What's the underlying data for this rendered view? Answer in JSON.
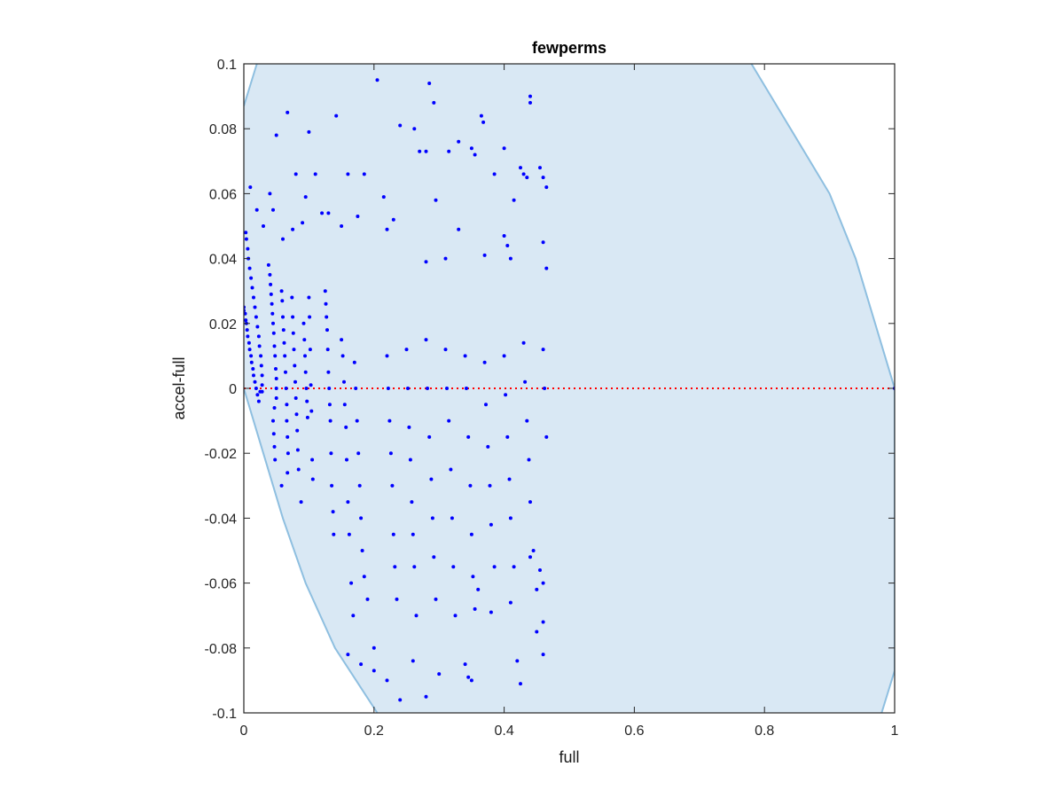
{
  "chart_data": {
    "type": "scatter",
    "title": "fewperms",
    "xlabel": "full",
    "ylabel": "accel-full",
    "xlim": [
      0,
      1
    ],
    "ylim": [
      -0.1,
      0.1
    ],
    "xticks": [
      0,
      0.2,
      0.4,
      0.6,
      0.8,
      1
    ],
    "xtick_labels": [
      "0",
      "0.2",
      "0.4",
      "0.6",
      "0.8",
      "1"
    ],
    "yticks": [
      -0.1,
      -0.08,
      -0.06,
      -0.04,
      -0.02,
      0,
      0.02,
      0.04,
      0.06,
      0.08,
      0.1
    ],
    "ytick_labels": [
      "-0.1",
      "-0.08",
      "-0.06",
      "-0.04",
      "-0.02",
      "0",
      "0.02",
      "0.04",
      "0.06",
      "0.08",
      "0.1"
    ],
    "grid": false,
    "colors": {
      "points": "#0000ff",
      "region_fill": "#d9e8f4",
      "region_edge": "#8ebfe0",
      "zero_line": "#ff0000"
    },
    "region": {
      "description_free": true,
      "left_boundary": [
        [
          0.0,
          0.087
        ],
        [
          0.02,
          0.1
        ]
      ],
      "lower_left_boundary": [
        [
          0.0,
          0.0
        ],
        [
          0.03,
          -0.02
        ],
        [
          0.06,
          -0.04
        ],
        [
          0.095,
          -0.06
        ],
        [
          0.14,
          -0.08
        ],
        [
          0.205,
          -0.1
        ]
      ],
      "right_boundary": [
        [
          0.78,
          0.1
        ],
        [
          0.84,
          0.08
        ],
        [
          0.9,
          0.06
        ],
        [
          0.94,
          0.04
        ],
        [
          0.97,
          0.02
        ],
        [
          1.0,
          0.0
        ],
        [
          1.0,
          -0.087
        ],
        [
          0.98,
          -0.1
        ]
      ]
    },
    "zero_line": {
      "y": 0,
      "style": "dotted"
    },
    "series": [
      {
        "points": [
          [
            0.0,
            0.025
          ],
          [
            0.0,
            0.024
          ],
          [
            0.002,
            0.023
          ],
          [
            0.003,
            0.021
          ],
          [
            0.004,
            0.02
          ],
          [
            0.005,
            0.018
          ],
          [
            0.006,
            0.016
          ],
          [
            0.008,
            0.014
          ],
          [
            0.009,
            0.012
          ],
          [
            0.011,
            0.01
          ],
          [
            0.012,
            0.008
          ],
          [
            0.014,
            0.006
          ],
          [
            0.015,
            0.004
          ],
          [
            0.017,
            0.002
          ],
          [
            0.019,
            0.0
          ],
          [
            0.021,
            -0.002
          ],
          [
            0.023,
            -0.004
          ],
          [
            0.025,
            -0.001
          ],
          [
            0.003,
            0.048
          ],
          [
            0.004,
            0.046
          ],
          [
            0.006,
            0.043
          ],
          [
            0.007,
            0.04
          ],
          [
            0.009,
            0.037
          ],
          [
            0.011,
            0.034
          ],
          [
            0.013,
            0.031
          ],
          [
            0.015,
            0.028
          ],
          [
            0.017,
            0.025
          ],
          [
            0.019,
            0.022
          ],
          [
            0.021,
            0.019
          ],
          [
            0.023,
            0.016
          ],
          [
            0.024,
            0.013
          ],
          [
            0.026,
            0.01
          ],
          [
            0.027,
            0.007
          ],
          [
            0.028,
            0.004
          ],
          [
            0.028,
            0.001
          ],
          [
            0.028,
            -0.001
          ],
          [
            0.038,
            0.038
          ],
          [
            0.04,
            0.035
          ],
          [
            0.041,
            0.032
          ],
          [
            0.042,
            0.029
          ],
          [
            0.043,
            0.026
          ],
          [
            0.044,
            0.023
          ],
          [
            0.045,
            0.02
          ],
          [
            0.046,
            0.017
          ],
          [
            0.047,
            0.013
          ],
          [
            0.048,
            0.01
          ],
          [
            0.049,
            0.006
          ],
          [
            0.05,
            0.003
          ],
          [
            0.05,
            0.0
          ],
          [
            0.05,
            -0.003
          ],
          [
            0.047,
            -0.006
          ],
          [
            0.045,
            -0.01
          ],
          [
            0.046,
            -0.014
          ],
          [
            0.047,
            -0.018
          ],
          [
            0.048,
            -0.022
          ],
          [
            0.058,
            0.03
          ],
          [
            0.059,
            0.027
          ],
          [
            0.06,
            0.022
          ],
          [
            0.061,
            0.018
          ],
          [
            0.062,
            0.014
          ],
          [
            0.063,
            0.01
          ],
          [
            0.064,
            0.005
          ],
          [
            0.065,
            0.0
          ],
          [
            0.066,
            -0.005
          ],
          [
            0.066,
            -0.01
          ],
          [
            0.067,
            -0.015
          ],
          [
            0.068,
            -0.02
          ],
          [
            0.067,
            -0.026
          ],
          [
            0.058,
            -0.03
          ],
          [
            0.074,
            0.028
          ],
          [
            0.075,
            0.022
          ],
          [
            0.076,
            0.017
          ],
          [
            0.077,
            0.012
          ],
          [
            0.078,
            0.007
          ],
          [
            0.079,
            0.002
          ],
          [
            0.08,
            -0.003
          ],
          [
            0.081,
            -0.008
          ],
          [
            0.082,
            -0.013
          ],
          [
            0.083,
            -0.019
          ],
          [
            0.084,
            -0.025
          ],
          [
            0.088,
            -0.035
          ],
          [
            0.092,
            0.02
          ],
          [
            0.093,
            0.015
          ],
          [
            0.094,
            0.01
          ],
          [
            0.095,
            0.005
          ],
          [
            0.096,
            0.0
          ],
          [
            0.097,
            -0.004
          ],
          [
            0.098,
            -0.009
          ],
          [
            0.1,
            0.028
          ],
          [
            0.101,
            0.022
          ],
          [
            0.102,
            0.012
          ],
          [
            0.103,
            0.001
          ],
          [
            0.104,
            -0.007
          ],
          [
            0.105,
            -0.022
          ],
          [
            0.106,
            -0.028
          ],
          [
            0.125,
            0.03
          ],
          [
            0.126,
            0.026
          ],
          [
            0.127,
            0.022
          ],
          [
            0.128,
            0.018
          ],
          [
            0.129,
            0.012
          ],
          [
            0.13,
            0.005
          ],
          [
            0.131,
            0.0
          ],
          [
            0.132,
            -0.005
          ],
          [
            0.133,
            -0.01
          ],
          [
            0.134,
            -0.02
          ],
          [
            0.135,
            -0.03
          ],
          [
            0.137,
            -0.038
          ],
          [
            0.138,
            -0.045
          ],
          [
            0.15,
            0.015
          ],
          [
            0.152,
            0.01
          ],
          [
            0.154,
            0.002
          ],
          [
            0.155,
            -0.005
          ],
          [
            0.157,
            -0.012
          ],
          [
            0.158,
            -0.022
          ],
          [
            0.16,
            -0.035
          ],
          [
            0.162,
            -0.045
          ],
          [
            0.165,
            -0.06
          ],
          [
            0.168,
            -0.07
          ],
          [
            0.17,
            0.008
          ],
          [
            0.172,
            0.0
          ],
          [
            0.174,
            -0.01
          ],
          [
            0.176,
            -0.02
          ],
          [
            0.178,
            -0.03
          ],
          [
            0.18,
            -0.04
          ],
          [
            0.182,
            -0.05
          ],
          [
            0.185,
            -0.058
          ],
          [
            0.19,
            -0.065
          ],
          [
            0.2,
            -0.08
          ],
          [
            0.22,
            0.01
          ],
          [
            0.222,
            0.0
          ],
          [
            0.224,
            -0.01
          ],
          [
            0.226,
            -0.02
          ],
          [
            0.228,
            -0.03
          ],
          [
            0.23,
            -0.045
          ],
          [
            0.232,
            -0.055
          ],
          [
            0.235,
            -0.065
          ],
          [
            0.25,
            0.012
          ],
          [
            0.252,
            0.0
          ],
          [
            0.254,
            -0.012
          ],
          [
            0.256,
            -0.022
          ],
          [
            0.258,
            -0.035
          ],
          [
            0.26,
            -0.045
          ],
          [
            0.262,
            -0.055
          ],
          [
            0.265,
            -0.07
          ],
          [
            0.28,
            0.015
          ],
          [
            0.282,
            0.0
          ],
          [
            0.285,
            -0.015
          ],
          [
            0.288,
            -0.028
          ],
          [
            0.29,
            -0.04
          ],
          [
            0.292,
            -0.052
          ],
          [
            0.295,
            -0.065
          ],
          [
            0.31,
            0.012
          ],
          [
            0.312,
            0.0
          ],
          [
            0.315,
            -0.01
          ],
          [
            0.318,
            -0.025
          ],
          [
            0.32,
            -0.04
          ],
          [
            0.322,
            -0.055
          ],
          [
            0.325,
            -0.07
          ],
          [
            0.34,
            0.01
          ],
          [
            0.342,
            0.0
          ],
          [
            0.345,
            -0.015
          ],
          [
            0.348,
            -0.03
          ],
          [
            0.35,
            -0.045
          ],
          [
            0.352,
            -0.058
          ],
          [
            0.355,
            -0.068
          ],
          [
            0.37,
            0.008
          ],
          [
            0.372,
            -0.005
          ],
          [
            0.375,
            -0.018
          ],
          [
            0.378,
            -0.03
          ],
          [
            0.38,
            -0.042
          ],
          [
            0.385,
            -0.055
          ],
          [
            0.4,
            0.01
          ],
          [
            0.402,
            -0.002
          ],
          [
            0.405,
            -0.015
          ],
          [
            0.408,
            -0.028
          ],
          [
            0.41,
            -0.04
          ],
          [
            0.415,
            -0.055
          ],
          [
            0.43,
            0.014
          ],
          [
            0.432,
            0.002
          ],
          [
            0.435,
            -0.01
          ],
          [
            0.438,
            -0.022
          ],
          [
            0.44,
            -0.035
          ],
          [
            0.445,
            -0.05
          ],
          [
            0.45,
            -0.062
          ],
          [
            0.46,
            0.012
          ],
          [
            0.462,
            0.0
          ],
          [
            0.465,
            -0.015
          ],
          [
            0.01,
            0.062
          ],
          [
            0.02,
            0.055
          ],
          [
            0.04,
            0.06
          ],
          [
            0.05,
            0.078
          ],
          [
            0.067,
            0.085
          ],
          [
            0.08,
            0.066
          ],
          [
            0.1,
            0.079
          ],
          [
            0.11,
            0.066
          ],
          [
            0.095,
            0.059
          ],
          [
            0.142,
            0.084
          ],
          [
            0.13,
            0.054
          ],
          [
            0.16,
            0.066
          ],
          [
            0.185,
            0.066
          ],
          [
            0.215,
            0.059
          ],
          [
            0.205,
            0.095
          ],
          [
            0.24,
            0.081
          ],
          [
            0.262,
            0.08
          ],
          [
            0.27,
            0.073
          ],
          [
            0.285,
            0.094
          ],
          [
            0.292,
            0.088
          ],
          [
            0.295,
            0.058
          ],
          [
            0.28,
            0.073
          ],
          [
            0.315,
            0.073
          ],
          [
            0.33,
            0.076
          ],
          [
            0.35,
            0.074
          ],
          [
            0.355,
            0.072
          ],
          [
            0.365,
            0.084
          ],
          [
            0.368,
            0.082
          ],
          [
            0.385,
            0.066
          ],
          [
            0.4,
            0.074
          ],
          [
            0.415,
            0.058
          ],
          [
            0.425,
            0.068
          ],
          [
            0.44,
            0.09
          ],
          [
            0.44,
            0.088
          ],
          [
            0.43,
            0.066
          ],
          [
            0.435,
            0.065
          ],
          [
            0.455,
            0.068
          ],
          [
            0.46,
            0.065
          ],
          [
            0.465,
            0.062
          ],
          [
            0.46,
            0.045
          ],
          [
            0.465,
            0.037
          ],
          [
            0.4,
            0.047
          ],
          [
            0.405,
            0.044
          ],
          [
            0.41,
            0.04
          ],
          [
            0.37,
            0.041
          ],
          [
            0.33,
            0.049
          ],
          [
            0.31,
            0.04
          ],
          [
            0.28,
            0.039
          ],
          [
            0.22,
            0.049
          ],
          [
            0.23,
            0.052
          ],
          [
            0.175,
            0.053
          ],
          [
            0.15,
            0.05
          ],
          [
            0.12,
            0.054
          ],
          [
            0.09,
            0.051
          ],
          [
            0.075,
            0.049
          ],
          [
            0.06,
            0.046
          ],
          [
            0.045,
            0.055
          ],
          [
            0.03,
            0.05
          ],
          [
            0.42,
            -0.084
          ],
          [
            0.425,
            -0.091
          ],
          [
            0.46,
            -0.072
          ],
          [
            0.46,
            -0.082
          ],
          [
            0.46,
            -0.06
          ],
          [
            0.455,
            -0.056
          ],
          [
            0.44,
            -0.052
          ],
          [
            0.45,
            -0.075
          ],
          [
            0.41,
            -0.066
          ],
          [
            0.38,
            -0.069
          ],
          [
            0.36,
            -0.062
          ],
          [
            0.34,
            -0.085
          ],
          [
            0.345,
            -0.089
          ],
          [
            0.35,
            -0.09
          ],
          [
            0.3,
            -0.088
          ],
          [
            0.28,
            -0.095
          ],
          [
            0.26,
            -0.084
          ],
          [
            0.24,
            -0.096
          ],
          [
            0.22,
            -0.09
          ],
          [
            0.2,
            -0.087
          ],
          [
            0.18,
            -0.085
          ],
          [
            0.16,
            -0.082
          ]
        ]
      }
    ]
  }
}
